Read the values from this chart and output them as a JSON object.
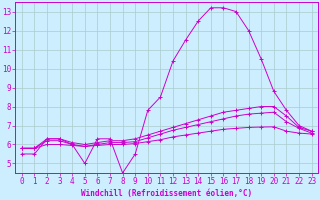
{
  "title": "",
  "xlabel": "Windchill (Refroidissement éolien,°C)",
  "ylabel": "",
  "background_color": "#cceeff",
  "grid_color": "#aacccc",
  "line_color": "#cc00cc",
  "xlim": [
    -0.5,
    23.5
  ],
  "ylim": [
    4.5,
    13.5
  ],
  "xticks": [
    0,
    1,
    2,
    3,
    4,
    5,
    6,
    7,
    8,
    9,
    10,
    11,
    12,
    13,
    14,
    15,
    16,
    17,
    18,
    19,
    20,
    21,
    22,
    23
  ],
  "yticks": [
    5,
    6,
    7,
    8,
    9,
    10,
    11,
    12,
    13
  ],
  "line1_x": [
    0,
    1,
    2,
    3,
    4,
    5,
    6,
    7,
    8,
    9,
    10,
    11,
    12,
    13,
    14,
    15,
    16,
    17,
    18,
    19,
    20,
    21,
    22,
    23
  ],
  "line1_y": [
    5.5,
    5.5,
    6.3,
    6.3,
    6.0,
    5.0,
    6.3,
    6.3,
    4.5,
    5.5,
    7.8,
    8.5,
    10.4,
    11.5,
    12.5,
    13.2,
    13.2,
    13.0,
    12.0,
    10.5,
    8.8,
    7.8,
    7.0,
    6.7
  ],
  "line2_x": [
    0,
    1,
    2,
    3,
    4,
    5,
    6,
    7,
    8,
    9,
    10,
    11,
    12,
    13,
    14,
    15,
    16,
    17,
    18,
    19,
    20,
    21,
    22,
    23
  ],
  "line2_y": [
    5.8,
    5.8,
    6.3,
    6.3,
    6.1,
    6.0,
    6.1,
    6.2,
    6.2,
    6.3,
    6.5,
    6.7,
    6.9,
    7.1,
    7.3,
    7.5,
    7.7,
    7.8,
    7.9,
    8.0,
    8.0,
    7.5,
    6.9,
    6.7
  ],
  "line3_x": [
    0,
    1,
    2,
    3,
    4,
    5,
    6,
    7,
    8,
    9,
    10,
    11,
    12,
    13,
    14,
    15,
    16,
    17,
    18,
    19,
    20,
    21,
    22,
    23
  ],
  "line3_y": [
    5.8,
    5.8,
    6.2,
    6.2,
    6.0,
    5.9,
    6.0,
    6.1,
    6.1,
    6.15,
    6.35,
    6.55,
    6.75,
    6.9,
    7.05,
    7.2,
    7.35,
    7.5,
    7.6,
    7.65,
    7.7,
    7.2,
    6.85,
    6.6
  ],
  "line4_x": [
    0,
    1,
    2,
    3,
    4,
    5,
    6,
    7,
    8,
    9,
    10,
    11,
    12,
    13,
    14,
    15,
    16,
    17,
    18,
    19,
    20,
    21,
    22,
    23
  ],
  "line4_y": [
    5.8,
    5.8,
    6.0,
    6.0,
    5.95,
    5.9,
    5.95,
    6.0,
    6.0,
    6.05,
    6.15,
    6.25,
    6.4,
    6.5,
    6.6,
    6.7,
    6.8,
    6.85,
    6.9,
    6.92,
    6.93,
    6.7,
    6.6,
    6.55
  ],
  "marker": "+",
  "markersize": 2.5,
  "linewidth": 0.7,
  "tick_fontsize": 5.5,
  "xlabel_fontsize": 5.5
}
